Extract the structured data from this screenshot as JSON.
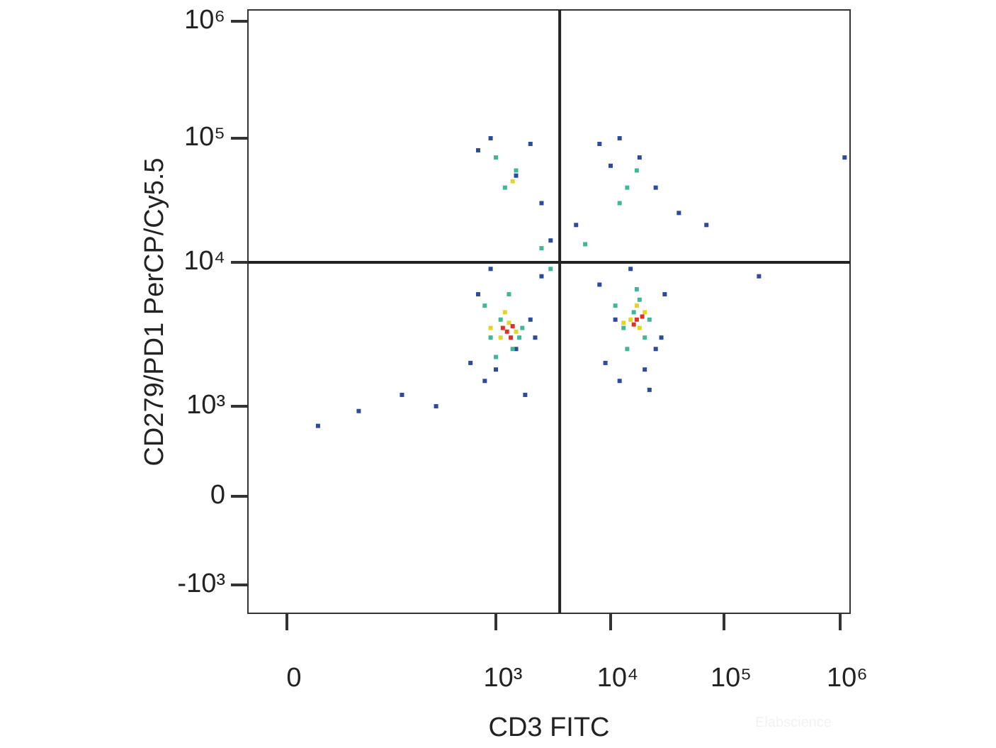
{
  "chart_data": {
    "type": "scatter",
    "x_label": "CD3 FITC",
    "y_label": "CD279/PD1 PerCP/Cy5.5",
    "watermark": "Elabscience",
    "xlim": [
      -100,
      1500000
    ],
    "ylim": [
      -2000,
      1500000
    ],
    "xticks": [
      0,
      {
        "value": 1000,
        "label": "10³"
      },
      {
        "value": 10000,
        "label": "10⁴"
      },
      {
        "value": 100000,
        "label": "10⁵"
      },
      {
        "value": 1000000,
        "label": "10⁶"
      }
    ],
    "yticks": [
      {
        "value": -1000,
        "label": "-10³"
      },
      0,
      {
        "value": 1000,
        "label": "10³"
      },
      {
        "value": 10000,
        "label": "10⁴"
      },
      {
        "value": 100000,
        "label": "10⁵"
      },
      {
        "value": 1000000,
        "label": "10⁶"
      }
    ],
    "gates": {
      "x": 3600,
      "y": 10000
    },
    "series": [
      {
        "color": "#2c4a9e",
        "x": [
          600,
          800,
          1000,
          1500,
          2000,
          2500,
          700,
          900,
          1800,
          2200,
          9000,
          12000,
          20000,
          25000,
          30000,
          8000,
          15000,
          22000,
          11000,
          28000,
          700,
          900,
          1500,
          2000,
          2500,
          8000,
          12000,
          18000,
          25000,
          10000,
          300,
          150,
          60,
          20,
          3000,
          5000,
          40000,
          70000,
          1200000,
          200000
        ],
        "values": [
          2000,
          1500,
          1800,
          2500,
          4000,
          8000,
          6000,
          9000,
          1200,
          3000,
          2000,
          1500,
          1800,
          2500,
          6000,
          7000,
          9000,
          1300,
          4000,
          3000,
          80000,
          100000,
          50000,
          90000,
          30000,
          90000,
          100000,
          70000,
          40000,
          60000,
          1000,
          1200,
          800,
          400,
          15000,
          20000,
          25000,
          20000,
          70000,
          8000
        ]
      },
      {
        "color": "#3fb89a",
        "x": [
          900,
          1100,
          1400,
          1700,
          800,
          1300,
          1600,
          1000,
          13000,
          16000,
          20000,
          11000,
          18000,
          14000,
          22000,
          17000,
          1200,
          1500,
          1000,
          14000,
          17000,
          12000,
          2500,
          6000,
          3000
        ],
        "values": [
          3000,
          4000,
          2500,
          3500,
          5000,
          6000,
          3000,
          2200,
          3500,
          4500,
          3000,
          5000,
          5500,
          2500,
          4000,
          6500,
          40000,
          55000,
          70000,
          40000,
          55000,
          30000,
          13000,
          14000,
          9000
        ]
      },
      {
        "color": "#e3d42a",
        "x": [
          1100,
          1300,
          1500,
          1200,
          900,
          15000,
          18000,
          20000,
          13000,
          17000,
          1400
        ],
        "values": [
          3000,
          3800,
          3300,
          4500,
          3500,
          4000,
          3500,
          4500,
          3800,
          5000,
          45000
        ]
      },
      {
        "color": "#e0302a",
        "x": [
          1250,
          1400,
          1150,
          1350,
          17000,
          19000,
          16000
        ],
        "values": [
          3300,
          3600,
          3500,
          3000,
          4000,
          4200,
          3700
        ]
      }
    ]
  }
}
